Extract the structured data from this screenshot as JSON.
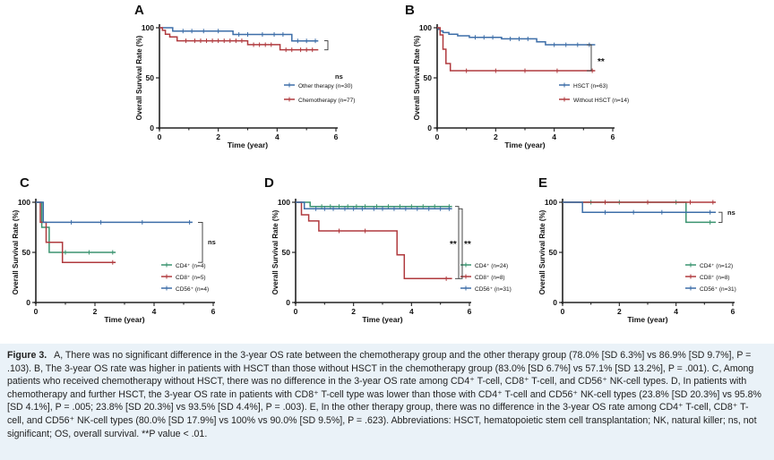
{
  "chart_data": [
    {
      "panel": "A",
      "type": "line",
      "ylabel": "Overall Survival Rate (%)",
      "xlabel": "Time (year)",
      "xlim": [
        0,
        6
      ],
      "ylim": [
        0,
        100
      ],
      "xticks": [
        "0",
        "2",
        "4",
        "6"
      ],
      "yticks": [
        "0",
        "50",
        "100"
      ],
      "annotation": "ns",
      "series": [
        {
          "name": "Other therapy (n=30)",
          "color": "#3d6ea8",
          "x": [
            0,
            0.45,
            0.45,
            2.5,
            2.5,
            4.5,
            4.5,
            5.4
          ],
          "y": [
            100,
            100,
            96.7,
            96.7,
            93.3,
            93.3,
            86.9,
            86.9
          ],
          "censors": [
            [
              0.8,
              96.7
            ],
            [
              1.1,
              96.7
            ],
            [
              1.5,
              96.7
            ],
            [
              2.0,
              96.7
            ],
            [
              2.7,
              93.3
            ],
            [
              3.0,
              93.3
            ],
            [
              3.5,
              93.3
            ],
            [
              3.9,
              93.3
            ],
            [
              4.2,
              93.3
            ],
            [
              4.7,
              86.9
            ],
            [
              5.0,
              86.9
            ],
            [
              5.3,
              86.9
            ]
          ]
        },
        {
          "name": "Chemotherapy (n=77)",
          "color": "#b03a3e",
          "x": [
            0,
            0.1,
            0.1,
            0.2,
            0.2,
            0.35,
            0.35,
            0.6,
            0.6,
            3.0,
            3.0,
            4.1,
            4.1,
            5.4
          ],
          "y": [
            100,
            100,
            97.4,
            97.4,
            93.5,
            93.5,
            90.9,
            90.9,
            87.0,
            87.0,
            83.1,
            83.1,
            78.0,
            78.0
          ],
          "censors": [
            [
              0.9,
              87.0
            ],
            [
              1.2,
              87.0
            ],
            [
              1.4,
              87.0
            ],
            [
              1.6,
              87.0
            ],
            [
              1.8,
              87.0
            ],
            [
              2.0,
              87.0
            ],
            [
              2.2,
              87.0
            ],
            [
              2.4,
              87.0
            ],
            [
              2.6,
              87.0
            ],
            [
              2.8,
              87.0
            ],
            [
              3.2,
              83.1
            ],
            [
              3.4,
              83.1
            ],
            [
              3.6,
              83.1
            ],
            [
              3.8,
              83.1
            ],
            [
              4.3,
              78.0
            ],
            [
              4.5,
              78.0
            ],
            [
              4.8,
              78.0
            ],
            [
              5.0,
              78.0
            ],
            [
              5.2,
              78.0
            ]
          ]
        }
      ]
    },
    {
      "panel": "B",
      "type": "line",
      "ylabel": "Overall Survival Rate (%)",
      "xlabel": "Time (year)",
      "xlim": [
        0,
        6
      ],
      "ylim": [
        0,
        100
      ],
      "xticks": [
        "0",
        "2",
        "4",
        "6"
      ],
      "yticks": [
        "0",
        "50",
        "100"
      ],
      "annotation": "**",
      "series": [
        {
          "name": "HSCT (n=63)",
          "color": "#3d6ea8",
          "x": [
            0,
            0.05,
            0.05,
            0.1,
            0.1,
            0.2,
            0.2,
            0.4,
            0.4,
            0.7,
            0.7,
            1.1,
            1.1,
            2.2,
            2.2,
            3.4,
            3.4,
            3.7,
            3.7,
            5.4
          ],
          "y": [
            100,
            100,
            98.4,
            98.4,
            96.8,
            96.8,
            95.2,
            95.2,
            93.6,
            93.6,
            92.0,
            92.0,
            90.4,
            90.4,
            88.9,
            88.9,
            86.0,
            86.0,
            83.0,
            83.0
          ],
          "censors": [
            [
              1.3,
              90.4
            ],
            [
              1.6,
              90.4
            ],
            [
              1.9,
              90.4
            ],
            [
              2.5,
              88.9
            ],
            [
              2.8,
              88.9
            ],
            [
              3.1,
              88.9
            ],
            [
              4.0,
              83.0
            ],
            [
              4.4,
              83.0
            ],
            [
              4.8,
              83.0
            ],
            [
              5.2,
              83.0
            ]
          ]
        },
        {
          "name": "Without HSCT (n=14)",
          "color": "#b03a3e",
          "x": [
            0,
            0.1,
            0.1,
            0.2,
            0.2,
            0.3,
            0.3,
            0.45,
            0.45,
            5.4
          ],
          "y": [
            100,
            100,
            92.9,
            92.9,
            78.6,
            78.6,
            64.3,
            64.3,
            57.1,
            57.1
          ],
          "censors": [
            [
              1.0,
              57.1
            ],
            [
              2.0,
              57.1
            ],
            [
              3.0,
              57.1
            ],
            [
              4.1,
              57.1
            ],
            [
              5.3,
              57.1
            ]
          ]
        }
      ]
    },
    {
      "panel": "C",
      "type": "line",
      "ylabel": "Overall Survival Rate (%)",
      "xlabel": "Time (year)",
      "xlim": [
        0,
        6
      ],
      "ylim": [
        0,
        100
      ],
      "xticks": [
        "0",
        "2",
        "4",
        "6"
      ],
      "yticks": [
        "0",
        "50",
        "100"
      ],
      "annotation": "ns",
      "series": [
        {
          "name": "CD4⁺ (n=4)",
          "color": "#3b9470",
          "x": [
            0,
            0.2,
            0.2,
            0.45,
            0.45,
            2.7
          ],
          "y": [
            100,
            100,
            75,
            75,
            50,
            50
          ],
          "censors": [
            [
              1.0,
              50
            ],
            [
              1.8,
              50
            ],
            [
              2.6,
              50
            ]
          ]
        },
        {
          "name": "CD8⁺ (n=5)",
          "color": "#b03a3e",
          "x": [
            0,
            0.15,
            0.15,
            0.35,
            0.35,
            0.9,
            0.9,
            2.7
          ],
          "y": [
            100,
            100,
            80,
            80,
            60,
            60,
            40,
            40
          ],
          "censors": [
            [
              2.6,
              40
            ]
          ]
        },
        {
          "name": "CD56⁺ (n=4)",
          "color": "#3d6ea8",
          "x": [
            0,
            0.25,
            0.25,
            5.3
          ],
          "y": [
            100,
            100,
            80,
            80
          ],
          "censors": [
            [
              1.2,
              80
            ],
            [
              2.2,
              80
            ],
            [
              3.6,
              80
            ],
            [
              5.2,
              80
            ]
          ]
        }
      ]
    },
    {
      "panel": "D",
      "type": "line",
      "ylabel": "Overall Survival Rate (%)",
      "xlabel": "Time (year)",
      "xlim": [
        0,
        6
      ],
      "ylim": [
        0,
        100
      ],
      "xticks": [
        "0",
        "2",
        "4",
        "6"
      ],
      "yticks": [
        "0",
        "50",
        "100"
      ],
      "annotation": "** **",
      "series": [
        {
          "name": "CD4⁺ (n=24)",
          "color": "#3b9470",
          "x": [
            0,
            0.5,
            0.5,
            5.4
          ],
          "y": [
            100,
            100,
            95.8,
            95.8
          ],
          "censors": [
            [
              0.9,
              95.8
            ],
            [
              1.2,
              95.8
            ],
            [
              1.5,
              95.8
            ],
            [
              1.8,
              95.8
            ],
            [
              2.1,
              95.8
            ],
            [
              2.4,
              95.8
            ],
            [
              2.8,
              95.8
            ],
            [
              3.2,
              95.8
            ],
            [
              3.6,
              95.8
            ],
            [
              4.0,
              95.8
            ],
            [
              4.4,
              95.8
            ],
            [
              4.8,
              95.8
            ],
            [
              5.3,
              95.8
            ]
          ]
        },
        {
          "name": "CD8⁺ (n=8)",
          "color": "#b03a3e",
          "x": [
            0,
            0.2,
            0.2,
            0.45,
            0.45,
            0.8,
            0.8,
            3.5,
            3.5,
            3.75,
            3.75,
            5.4
          ],
          "y": [
            100,
            100,
            87.5,
            87.5,
            81.3,
            81.3,
            71.4,
            71.4,
            47.6,
            47.6,
            23.8,
            23.8
          ],
          "censors": [
            [
              1.5,
              71.4
            ],
            [
              2.4,
              71.4
            ],
            [
              5.2,
              23.8
            ]
          ]
        },
        {
          "name": "CD56⁺ (n=31)",
          "color": "#3d6ea8",
          "x": [
            0,
            0.3,
            0.3,
            5.4
          ],
          "y": [
            100,
            100,
            93.5,
            93.5
          ],
          "censors": [
            [
              0.7,
              93.5
            ],
            [
              1.0,
              93.5
            ],
            [
              1.3,
              93.5
            ],
            [
              1.7,
              93.5
            ],
            [
              2.0,
              93.5
            ],
            [
              2.3,
              93.5
            ],
            [
              2.7,
              93.5
            ],
            [
              3.0,
              93.5
            ],
            [
              3.4,
              93.5
            ],
            [
              3.8,
              93.5
            ],
            [
              4.2,
              93.5
            ],
            [
              4.6,
              93.5
            ],
            [
              5.0,
              93.5
            ],
            [
              5.3,
              93.5
            ]
          ]
        }
      ]
    },
    {
      "panel": "E",
      "type": "line",
      "ylabel": "Overall Survival Rate (%)",
      "xlabel": "Time (year)",
      "xlim": [
        0,
        6
      ],
      "ylim": [
        0,
        100
      ],
      "xticks": [
        "0",
        "2",
        "4",
        "6"
      ],
      "yticks": [
        "0",
        "50",
        "100"
      ],
      "annotation": "ns",
      "series": [
        {
          "name": "CD4⁺ (n=12)",
          "color": "#3b9470",
          "x": [
            0,
            4.35,
            4.35,
            5.4
          ],
          "y": [
            100,
            100,
            80,
            80
          ],
          "censors": [
            [
              1.0,
              100
            ],
            [
              2.0,
              100
            ],
            [
              3.0,
              100
            ],
            [
              4.0,
              100
            ],
            [
              5.2,
              80
            ]
          ]
        },
        {
          "name": "CD8⁺ (n=8)",
          "color": "#b03a3e",
          "x": [
            0,
            5.4
          ],
          "y": [
            100,
            100
          ],
          "censors": [
            [
              1.5,
              100
            ],
            [
              3.0,
              100
            ],
            [
              4.5,
              100
            ],
            [
              5.3,
              100
            ]
          ]
        },
        {
          "name": "CD56⁺ (n=31)",
          "color": "#3d6ea8",
          "x": [
            0,
            0.7,
            0.7,
            4.35,
            4.35,
            5.4
          ],
          "y": [
            100,
            100,
            90,
            90,
            90,
            90
          ],
          "censors": [
            [
              1.5,
              90
            ],
            [
              2.5,
              90
            ],
            [
              3.5,
              90
            ],
            [
              5.2,
              90
            ]
          ]
        }
      ]
    }
  ],
  "caption": {
    "label": "Figure 3.",
    "text": "A, There was no significant difference in the 3-year OS rate between the chemotherapy group and the other therapy group (78.0% [SD 6.3%] vs 86.9% [SD 9.7%], P = .103). B, The 3-year OS rate was higher in patients with HSCT than those without HSCT in the chemotherapy group (83.0% [SD 6.7%] vs 57.1% [SD 13.2%], P = .001). C, Among patients who received chemotherapy without HSCT, there was no difference in the 3-year OS rate among CD4⁺ T-cell, CD8⁺ T-cell, and CD56⁺ NK-cell types. D, In patients with chemotherapy and further HSCT, the 3-year OS rate in patients with CD8⁺ T-cell type was lower than those with CD4⁺ T-cell and CD56⁺ NK-cell types (23.8% [SD 20.3%] vs 95.8% [SD 4.1%], P = .005; 23.8% [SD 20.3%] vs 93.5% [SD 4.4%], P = .003). E, In the other therapy group, there was no difference in the 3-year OS rate among CD4⁺ T-cell, CD8⁺ T-cell, and CD56⁺ NK-cell types (80.0% [SD 17.9%] vs 100% vs 90.0% [SD 9.5%], P = .623). Abbreviations: HSCT, hematopoietic stem cell transplantation; NK, natural killer; ns, not significant; OS, overall survival. **P value < .01."
  }
}
